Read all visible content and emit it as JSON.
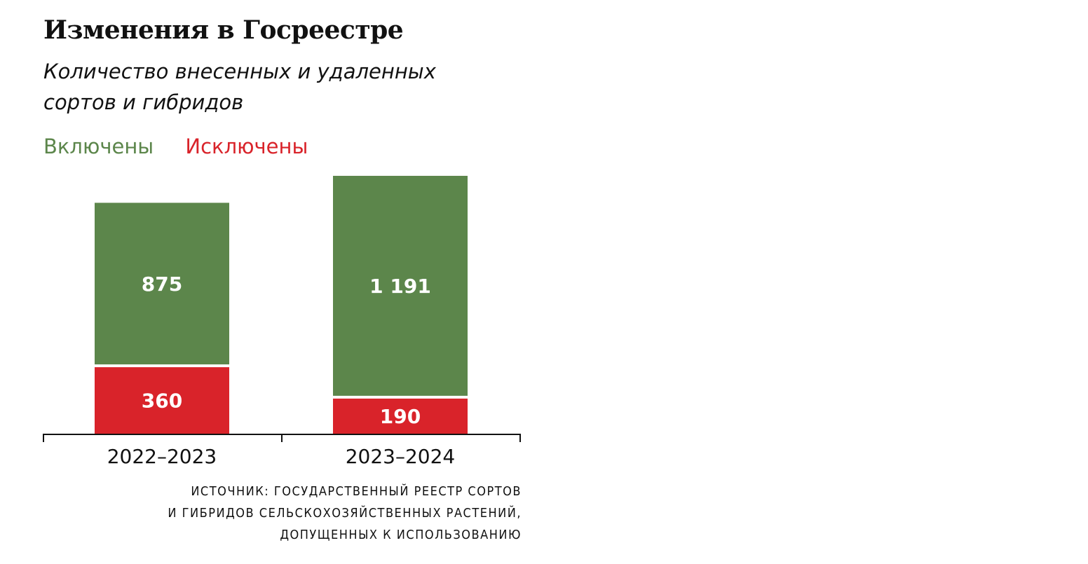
{
  "header": {
    "title": "Изменения в Госреестре",
    "subtitle_line1": "Количество внесенных и удаленных",
    "subtitle_line2": "сортов и гибридов"
  },
  "legend": {
    "included": "Включены",
    "excluded": "Исключены"
  },
  "chart_data": {
    "type": "bar",
    "stacked": true,
    "categories": [
      "2022–2023",
      "2023–2024"
    ],
    "series": [
      {
        "name": "Исключены",
        "values": [
          360,
          190
        ],
        "labels": [
          "360",
          "190"
        ],
        "color": "#d9232a"
      },
      {
        "name": "Включены",
        "values": [
          875,
          1191
        ],
        "labels": [
          "875",
          "1 191"
        ],
        "color": "#5c864b"
      }
    ],
    "title": "Изменения в Госреестре",
    "subtitle": "Количество внесенных и удаленных сортов и гибридов",
    "xlabel": "",
    "ylabel": "",
    "grid": false,
    "legend_position": "top-left"
  },
  "source": {
    "line1": "ИСТОЧНИК: ГОСУДАРСТВЕННЫЙ РЕЕСТР СОРТОВ",
    "line2": "И ГИБРИДОВ СЕЛЬСКОХОЗЯЙСТВЕННЫХ РАСТЕНИЙ,",
    "line3": "ДОПУЩЕННЫХ К ИСПОЛЬЗОВАНИЮ"
  }
}
